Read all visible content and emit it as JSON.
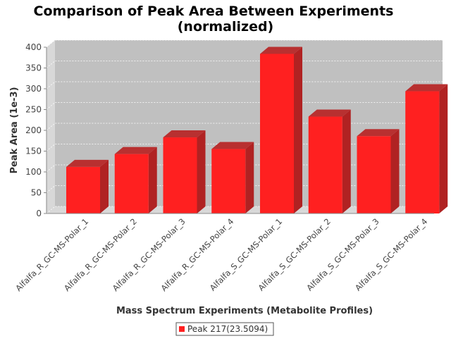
{
  "chart_data": {
    "type": "bar",
    "title_line1": "Comparison of Peak Area Between Experiments",
    "title_line2": "(normalized)",
    "xlabel": "Mass Spectrum Experiments (Metabolite Profiles)",
    "ylabel": "Peak Area (1e-3)",
    "ylim": [
      0,
      400
    ],
    "yticks": [
      0,
      50,
      100,
      150,
      200,
      250,
      300,
      350,
      400
    ],
    "grid": true,
    "legend_position": "bottom-center",
    "categories": [
      "Alfalfa_R_GC-MS-Polar_1",
      "Alfalfa_R_GC-MS-Polar_2",
      "Alfalfa_R_GC-MS-Polar_3",
      "Alfalfa_R_GC-MS-Polar_4",
      "Alfalfa_S_GC-MS-Polar_1",
      "Alfalfa_S_GC-MS-Polar_2",
      "Alfalfa_S_GC-MS-Polar_3",
      "Alfalfa_S_GC-MS-Polar_4"
    ],
    "series": [
      {
        "name": "Peak 217(23.5094)",
        "color": "#ff2020",
        "values": [
          112,
          143,
          183,
          155,
          384,
          233,
          186,
          294
        ]
      }
    ]
  }
}
